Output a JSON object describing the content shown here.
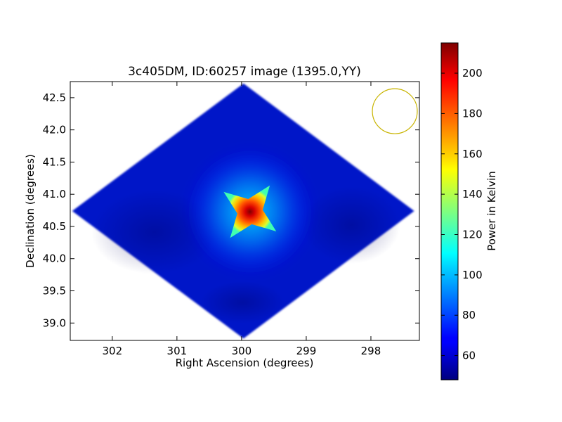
{
  "chart_data": {
    "type": "heatmap",
    "title": "3c405DM, ID:60257 image (1395.0,YY)",
    "xlabel": "Right Ascension (degrees)",
    "ylabel": "Declination (degrees)",
    "colorbar_label": "Power in Kelvin",
    "x_inverted": true,
    "xlim": [
      302.65,
      297.25
    ],
    "ylim": [
      38.73,
      42.75
    ],
    "xticks": [
      302,
      301,
      300,
      299,
      298
    ],
    "yticks": [
      39.0,
      39.5,
      40.0,
      40.5,
      41.0,
      41.5,
      42.0,
      42.5
    ],
    "xtick_labels": [
      "302",
      "301",
      "300",
      "299",
      "298"
    ],
    "ytick_labels": [
      "39.0",
      "39.5",
      "40.0",
      "40.5",
      "41.0",
      "41.5",
      "42.0",
      "42.5"
    ],
    "colorbar_range": [
      48,
      215
    ],
    "colorbar_ticks": [
      60,
      80,
      100,
      120,
      140,
      160,
      180,
      200
    ],
    "colorbar_tick_labels": [
      "60",
      "80",
      "100",
      "120",
      "140",
      "160",
      "180",
      "200"
    ],
    "colormap": "jet",
    "footprint": {
      "shape": "diamond",
      "corners": [
        {
          "ra": 299.97,
          "dec": 42.72
        },
        {
          "ra": 297.33,
          "dec": 40.74
        },
        {
          "ra": 299.97,
          "dec": 38.76
        },
        {
          "ra": 302.62,
          "dec": 40.74
        }
      ],
      "background_power": 58
    },
    "source": {
      "ra": 299.87,
      "dec": 40.73,
      "peak_power": 215,
      "edge_power": 160,
      "core_half_width_deg": 0.36,
      "halo_half_width_deg": 0.65
    },
    "beam": {
      "ra": 297.63,
      "dec": 42.29,
      "radius_deg": 0.36,
      "color": "#c8b400"
    }
  }
}
